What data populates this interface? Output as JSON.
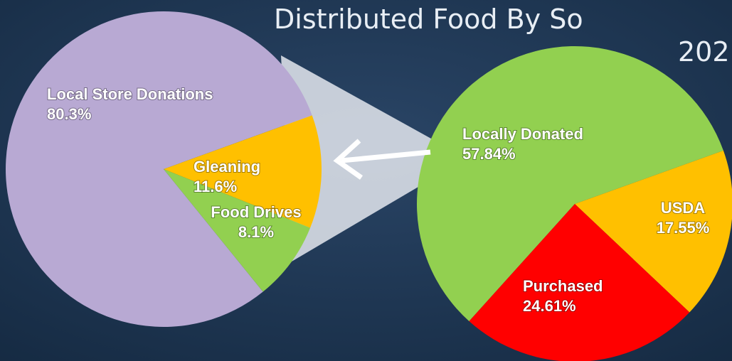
{
  "title": "Distributed Food By So",
  "subtitle": "202",
  "chart_data": [
    {
      "type": "pie",
      "categories": [
        "Local Store Donations",
        "Gleaning",
        "Food Drives"
      ],
      "values": [
        80.3,
        11.6,
        8.1
      ],
      "value_labels": [
        "80.3%",
        "11.6%",
        "8.1%"
      ],
      "colors": [
        "#b8a9d3",
        "#ffc000",
        "#92d050"
      ]
    },
    {
      "type": "pie",
      "categories": [
        "Locally Donated",
        "USDA",
        "Purchased"
      ],
      "values": [
        57.84,
        17.55,
        24.61
      ],
      "value_labels": [
        "57.84%",
        "17.55%",
        "24.61%"
      ],
      "colors": [
        "#92d050",
        "#ffc000",
        "#ff0000"
      ]
    }
  ]
}
